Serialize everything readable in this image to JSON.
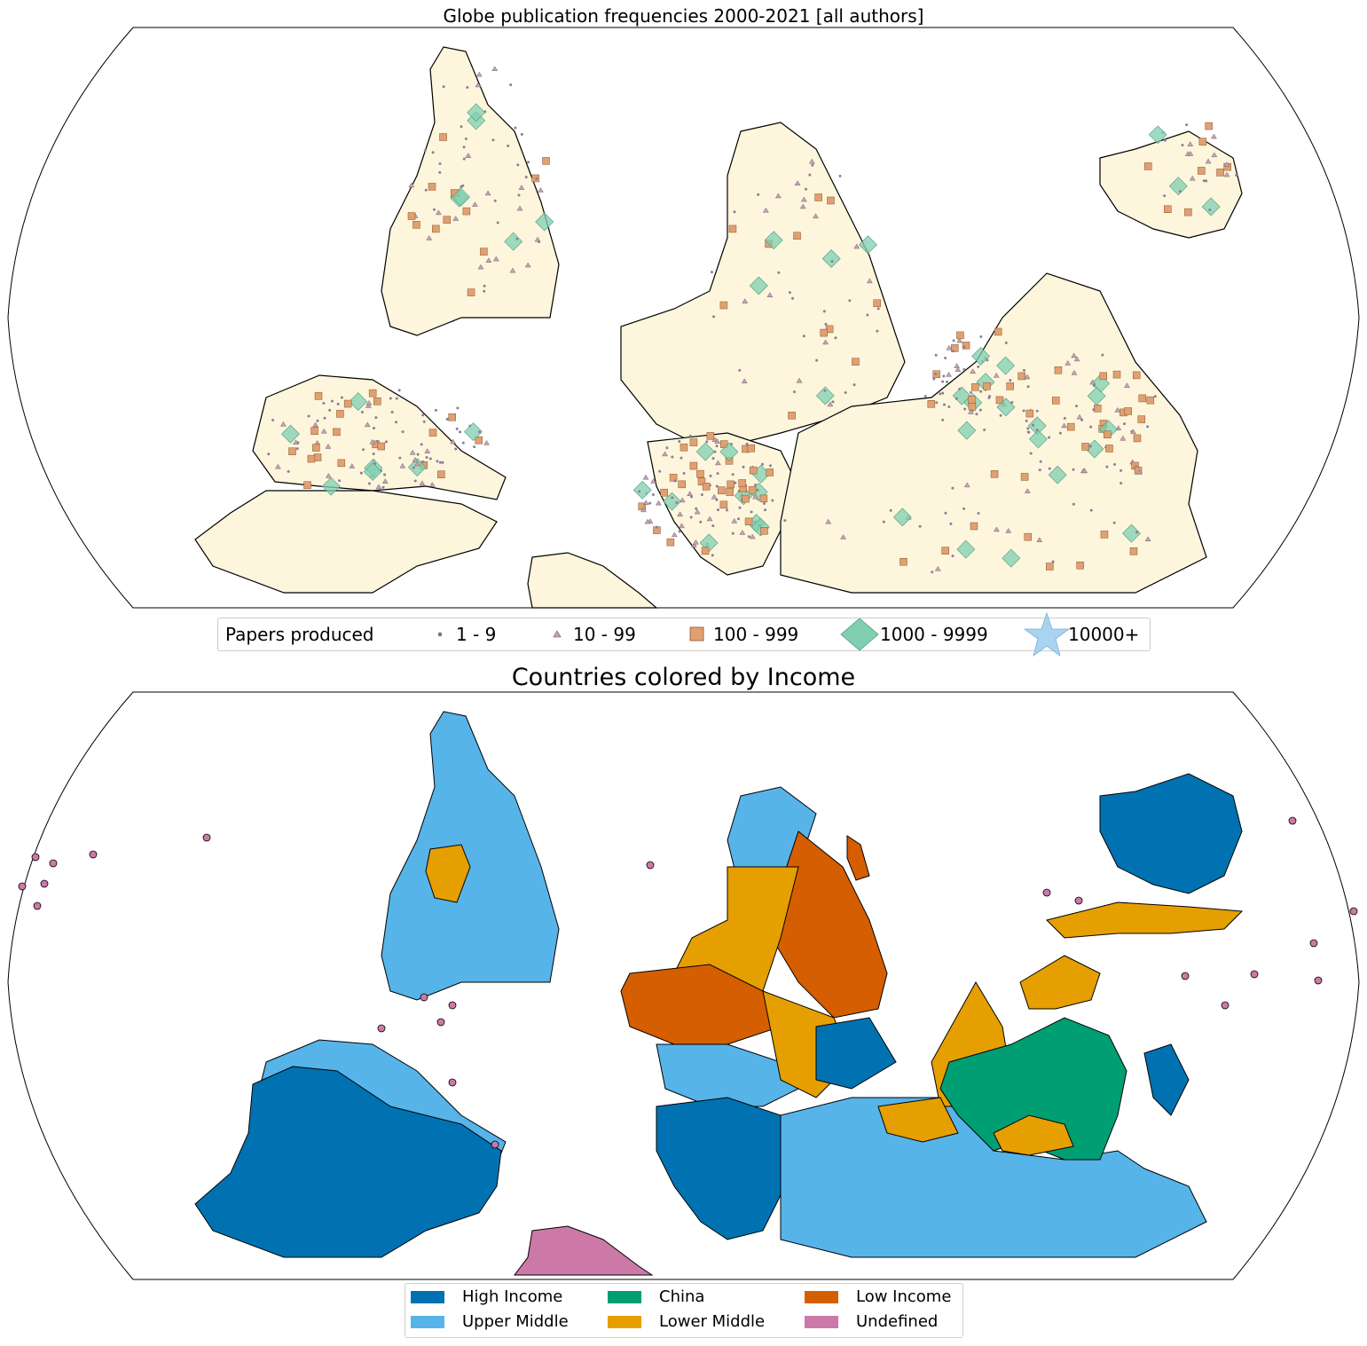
{
  "top_map": {
    "title": "Globe publication frequencies 2000-2021 [all authors]",
    "land_color": "#fdf5dc",
    "legend": {
      "title": "Papers produced",
      "entries": [
        {
          "label": "1 - 9",
          "marker": "dot",
          "color": "#8a7f9a"
        },
        {
          "label": "10 - 99",
          "marker": "triangle",
          "color": "#c9a0b8"
        },
        {
          "label": "100 - 999",
          "marker": "square",
          "color": "#e0a070"
        },
        {
          "label": "1000 - 9999",
          "marker": "diamond",
          "color": "#7fcfb0"
        },
        {
          "label": "10000+",
          "marker": "star",
          "color": "#a8d4f0"
        }
      ]
    }
  },
  "bottom_map": {
    "title": "Countries colored by Income",
    "legend": [
      {
        "label": "High Income",
        "color": "#0072b2"
      },
      {
        "label": "Upper Middle",
        "color": "#56b4e9"
      },
      {
        "label": "China",
        "color": "#009e73"
      },
      {
        "label": "Lower Middle",
        "color": "#e69f00"
      },
      {
        "label": "Low Income",
        "color": "#d55e00"
      },
      {
        "label": "Undefined",
        "color": "#cc79a7"
      }
    ]
  }
}
